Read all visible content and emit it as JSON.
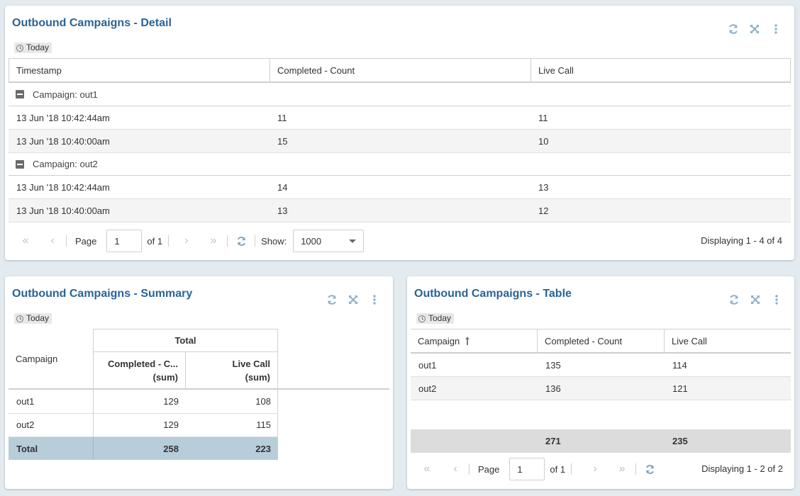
{
  "detail": {
    "title": "Outbound Campaigns - Detail",
    "date_filter": "Today",
    "columns": [
      "Timestamp",
      "Completed - Count",
      "Live Call"
    ],
    "groups": [
      {
        "label": "Campaign: out1",
        "rows": [
          [
            "13 Jun '18 10:42:44am",
            "11",
            "11"
          ],
          [
            "13 Jun '18 10:40:00am",
            "15",
            "10"
          ]
        ]
      },
      {
        "label": "Campaign: out2",
        "rows": [
          [
            "13 Jun '18 10:42:44am",
            "14",
            "13"
          ],
          [
            "13 Jun '18 10:40:00am",
            "13",
            "12"
          ]
        ]
      }
    ],
    "pager": {
      "page_label": "Page",
      "page_value": "1",
      "of_label": "of 1",
      "show_label": "Show:",
      "show_value": "1000",
      "display_info": "Displaying 1 - 4 of 4"
    }
  },
  "summary": {
    "title": "Outbound Campaigns - Summary",
    "date_filter": "Today",
    "row_header": "Campaign",
    "group_header": "Total",
    "col1_header": [
      "Completed - C...",
      "(sum)"
    ],
    "col2_header": [
      "Live Call",
      "(sum)"
    ],
    "rows": [
      [
        "out1",
        "129",
        "108"
      ],
      [
        "out2",
        "129",
        "115"
      ]
    ],
    "total": [
      "Total",
      "258",
      "223"
    ]
  },
  "table": {
    "title": "Outbound Campaigns - Table",
    "date_filter": "Today",
    "columns": [
      "Campaign",
      "Completed - Count",
      "Live Call"
    ],
    "rows": [
      [
        "out1",
        "135",
        "114"
      ],
      [
        "out2",
        "136",
        "121"
      ]
    ],
    "totals": [
      "",
      "271",
      "235"
    ],
    "pager": {
      "page_label": "Page",
      "page_value": "1",
      "of_label": "of 1",
      "display_info": "Displaying 1 - 2 of 2"
    }
  },
  "colors": {
    "title": "#2a6496",
    "icon": "#8fb1c7",
    "total_row": "#b7cdd9",
    "footer_row": "#dcdcdc"
  }
}
